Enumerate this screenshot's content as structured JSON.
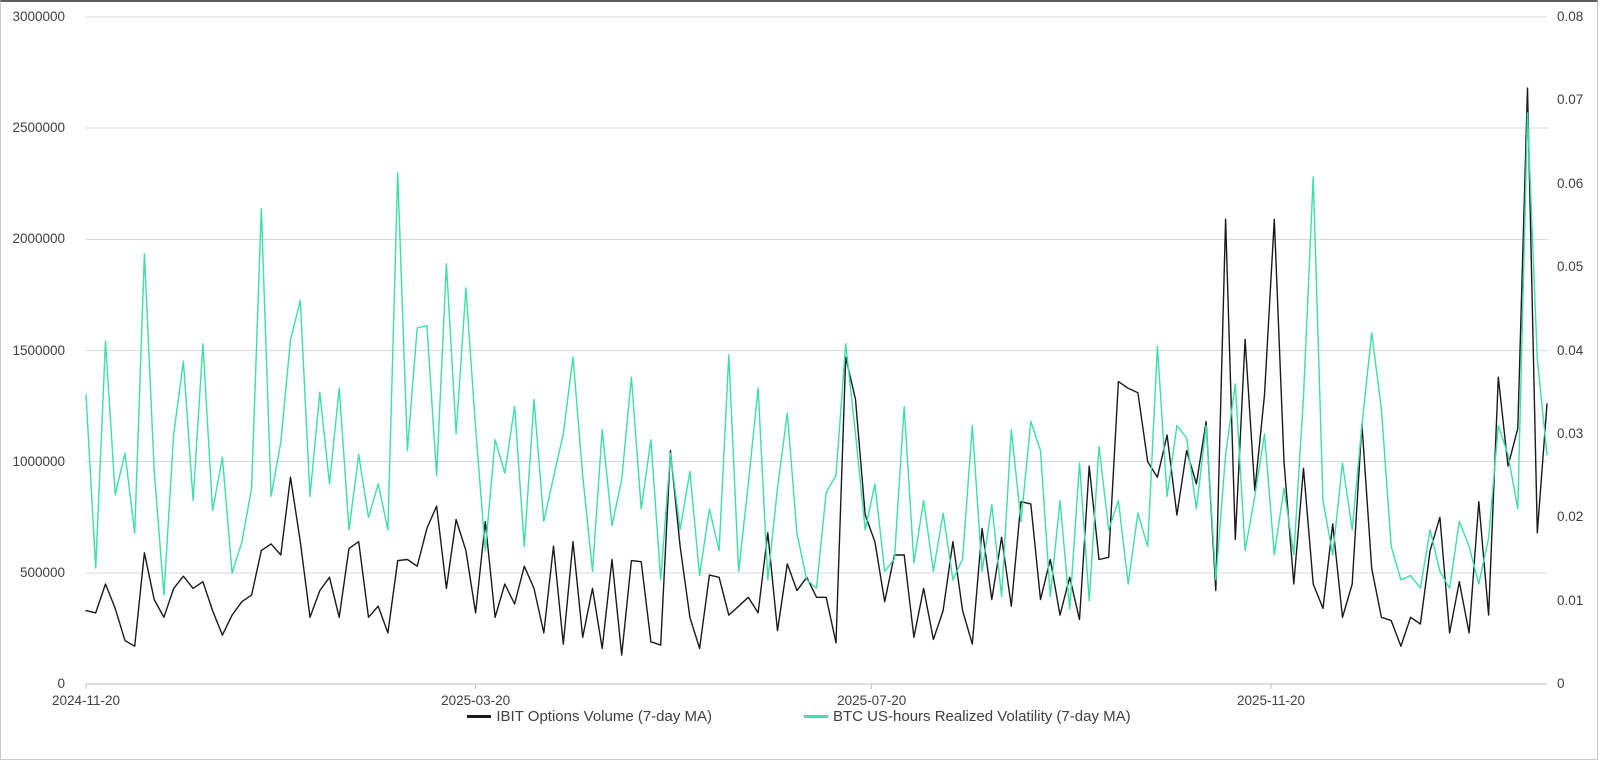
{
  "chart_data": {
    "type": "line",
    "title": "",
    "grid": "horizontal",
    "legend_position": "bottom-center",
    "background_color": "#ffffff",
    "gridline_color": "#d9d9d9",
    "axis_line_color": "#bfbfbf",
    "label_color": "#404040",
    "x_axis": {
      "start_date": "2024-11-20",
      "total_days": 450,
      "ticks": [
        {
          "day": 0,
          "label": "2024-11-20"
        },
        {
          "day": 120,
          "label": "2025-03-20"
        },
        {
          "day": 242,
          "label": "2025-07-20"
        },
        {
          "day": 365,
          "label": "2025-11-20"
        }
      ]
    },
    "left_axis": {
      "min": 0,
      "max": 3000000,
      "tick_values": [
        0,
        500000,
        1000000,
        1500000,
        2000000,
        2500000,
        3000000
      ],
      "tick_labels": [
        "0",
        "500000",
        "1000000",
        "1500000",
        "2000000",
        "2500000",
        "3000000"
      ]
    },
    "right_axis": {
      "min": 0,
      "max": 0.08,
      "tick_values": [
        0,
        0.01,
        0.02,
        0.03,
        0.04,
        0.05,
        0.06,
        0.07,
        0.08
      ],
      "tick_labels": [
        "0",
        "0.01",
        "0.02",
        "0.03",
        "0.04",
        "0.05",
        "0.06",
        "0.07",
        "0.08"
      ]
    },
    "series": [
      {
        "name": "IBIT Options Volume (7-day MA)",
        "axis": "left",
        "color": "#1a1a1a",
        "step_days": 3,
        "values": [
          330000,
          320000,
          450000,
          340000,
          195000,
          170000,
          590000,
          380000,
          300000,
          430000,
          485000,
          430000,
          460000,
          330000,
          220000,
          310000,
          370000,
          400000,
          600000,
          630000,
          580000,
          930000,
          640000,
          300000,
          420000,
          480000,
          300000,
          610000,
          640000,
          300000,
          350000,
          230000,
          555000,
          560000,
          530000,
          700000,
          800000,
          430000,
          740000,
          600000,
          320000,
          730000,
          300000,
          450000,
          360000,
          530000,
          430000,
          230000,
          620000,
          180000,
          640000,
          210000,
          430000,
          160000,
          560000,
          130000,
          555000,
          550000,
          190000,
          175000,
          1050000,
          620000,
          300000,
          160000,
          490000,
          480000,
          310000,
          350000,
          390000,
          320000,
          680000,
          240000,
          540000,
          420000,
          480000,
          390000,
          390000,
          185000,
          1470000,
          1280000,
          760000,
          640000,
          370000,
          580000,
          580000,
          210000,
          430000,
          200000,
          330000,
          640000,
          330000,
          180000,
          700000,
          380000,
          660000,
          350000,
          820000,
          810000,
          380000,
          560000,
          310000,
          480000,
          290000,
          980000,
          560000,
          570000,
          1360000,
          1330000,
          1310000,
          1000000,
          930000,
          1120000,
          760000,
          1050000,
          900000,
          1180000,
          420000,
          2090000,
          650000,
          1550000,
          870000,
          1300000,
          2090000,
          1000000,
          450000,
          970000,
          450000,
          340000,
          720000,
          300000,
          450000,
          1170000,
          520000,
          300000,
          285000,
          170000,
          300000,
          270000,
          600000,
          750000,
          230000,
          460000,
          230000,
          820000,
          310000,
          1380000,
          980000,
          1150000,
          2680000,
          680000,
          1260000
        ]
      },
      {
        "name": "BTC US-hours Realized Volatility (7-day MA)",
        "axis": "right",
        "color": "#3ce0a4",
        "step_days": 3,
        "values": [
          0.0347,
          0.0139,
          0.0411,
          0.0227,
          0.0277,
          0.0181,
          0.0516,
          0.0256,
          0.0107,
          0.03,
          0.0387,
          0.022,
          0.0408,
          0.0208,
          0.0272,
          0.0133,
          0.017,
          0.0235,
          0.057,
          0.0225,
          0.029,
          0.0413,
          0.046,
          0.0225,
          0.035,
          0.024,
          0.0355,
          0.0185,
          0.0275,
          0.02,
          0.024,
          0.0185,
          0.0613,
          0.028,
          0.0427,
          0.043,
          0.025,
          0.0504,
          0.03,
          0.0475,
          0.0307,
          0.016,
          0.0293,
          0.0253,
          0.0333,
          0.0165,
          0.0341,
          0.0195,
          0.0248,
          0.03,
          0.0392,
          0.025,
          0.0135,
          0.0305,
          0.019,
          0.0245,
          0.0368,
          0.021,
          0.0293,
          0.0125,
          0.0277,
          0.0185,
          0.0255,
          0.013,
          0.021,
          0.016,
          0.0395,
          0.0135,
          0.024,
          0.0355,
          0.0125,
          0.0235,
          0.0325,
          0.018,
          0.0125,
          0.0115,
          0.023,
          0.025,
          0.0408,
          0.03,
          0.0185,
          0.024,
          0.0135,
          0.015,
          0.0333,
          0.0145,
          0.022,
          0.0135,
          0.0205,
          0.0125,
          0.015,
          0.031,
          0.0135,
          0.0215,
          0.0105,
          0.0305,
          0.0195,
          0.0315,
          0.028,
          0.0105,
          0.022,
          0.009,
          0.0265,
          0.01,
          0.0285,
          0.0185,
          0.022,
          0.012,
          0.0205,
          0.0165,
          0.0405,
          0.0225,
          0.031,
          0.0295,
          0.021,
          0.031,
          0.0125,
          0.0275,
          0.036,
          0.016,
          0.0225,
          0.03,
          0.0155,
          0.0235,
          0.0155,
          0.0345,
          0.0608,
          0.022,
          0.0155,
          0.0265,
          0.0185,
          0.031,
          0.0421,
          0.033,
          0.0165,
          0.0125,
          0.013,
          0.0115,
          0.0185,
          0.0135,
          0.0115,
          0.0195,
          0.0165,
          0.012,
          0.0175,
          0.031,
          0.0275,
          0.021,
          0.0685,
          0.039,
          0.0275
        ]
      }
    ]
  }
}
